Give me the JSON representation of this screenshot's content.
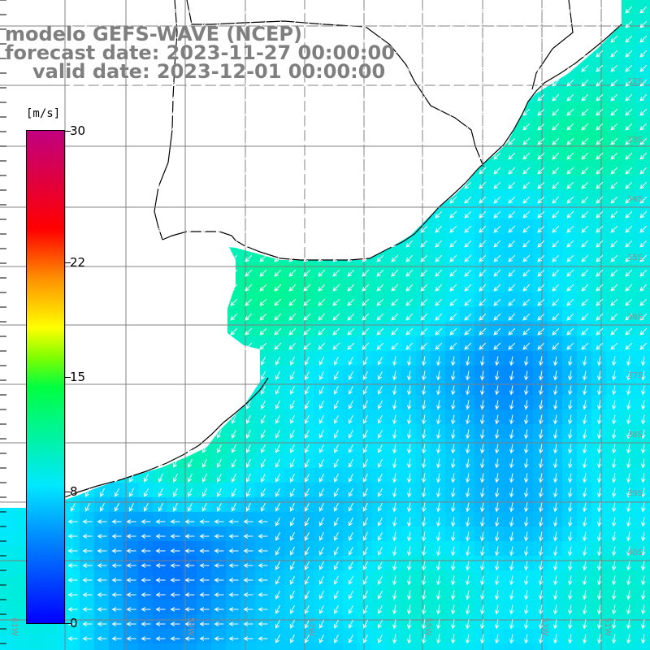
{
  "title": {
    "line1": "modelo GEFS-WAVE (NCEP)",
    "line2": "forecast date: 2023-11-27 00:00:00",
    "line3": "valid date: 2023-12-01 00:00:00"
  },
  "colorbar": {
    "units": "[m/s]",
    "ticks": [
      {
        "value": 30,
        "label": "30"
      },
      {
        "value": 22,
        "label": "22"
      },
      {
        "value": 15,
        "label": "15"
      },
      {
        "value": 8,
        "label": "8"
      },
      {
        "value": 0,
        "label": "0"
      }
    ],
    "range": [
      0,
      30
    ]
  },
  "map": {
    "lat_labels": [
      "32S",
      "33S",
      "34S",
      "35S",
      "36S",
      "37S",
      "38S",
      "39S",
      "40S"
    ],
    "lon_labels": [
      "61W",
      "59W",
      "57W",
      "55W",
      "53W",
      "51W"
    ],
    "colors": {
      "land": "#ffffff",
      "coast": "#000000",
      "grid": "#808080",
      "arrow": "#ffffff"
    }
  }
}
